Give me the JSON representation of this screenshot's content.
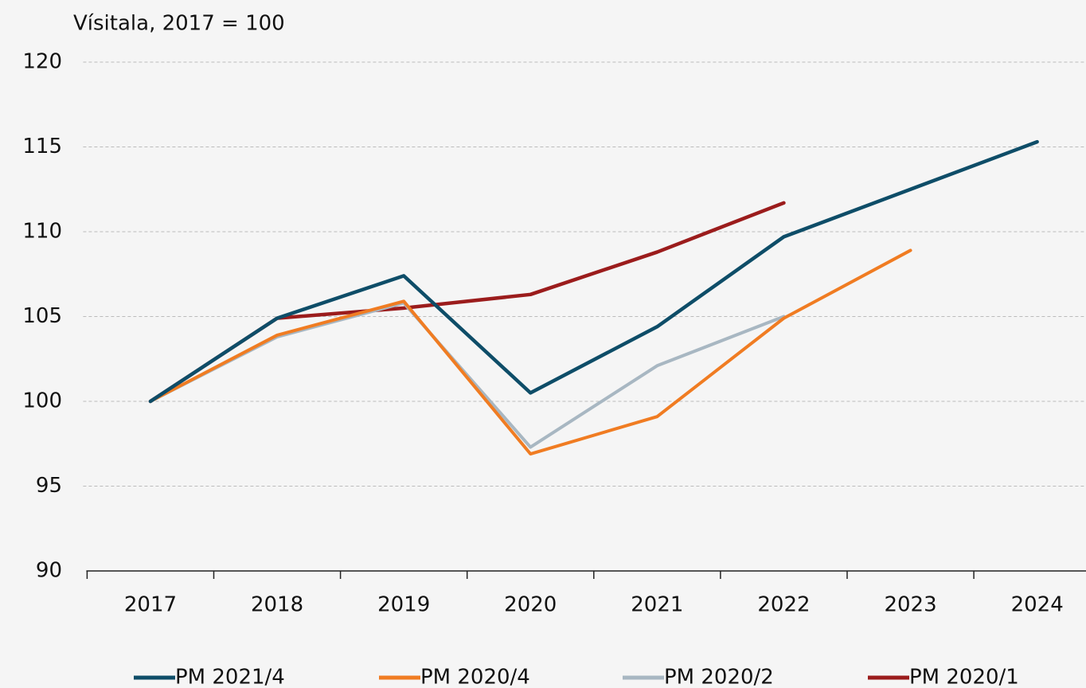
{
  "chart_data": {
    "type": "line",
    "ylabel": "Vísitala, 2017 = 100",
    "categories": [
      "2017",
      "2018",
      "2019",
      "2020",
      "2021",
      "2022",
      "2023",
      "2024"
    ],
    "series": [
      {
        "name": "PM 2021/4",
        "color": "#0e4d68",
        "values": [
          100,
          104.9,
          107.4,
          100.5,
          104.4,
          109.7,
          112.5,
          115.3
        ]
      },
      {
        "name": "PM 2020/4",
        "color": "#f07c22",
        "values": [
          100,
          103.9,
          105.9,
          96.9,
          99.1,
          104.9,
          108.9,
          null
        ]
      },
      {
        "name": "PM 2020/2",
        "color": "#a8b7c2",
        "values": [
          100,
          103.8,
          105.8,
          97.3,
          102.1,
          105.0,
          null,
          null
        ]
      },
      {
        "name": "PM 2020/1",
        "color": "#9b1c1c",
        "values": [
          100,
          104.9,
          105.5,
          106.3,
          108.8,
          111.7,
          null,
          null
        ]
      }
    ],
    "ylim": [
      90,
      120
    ],
    "yticks": [
      90,
      95,
      100,
      105,
      110,
      115,
      120
    ],
    "grid": true,
    "legend": "bottom"
  }
}
